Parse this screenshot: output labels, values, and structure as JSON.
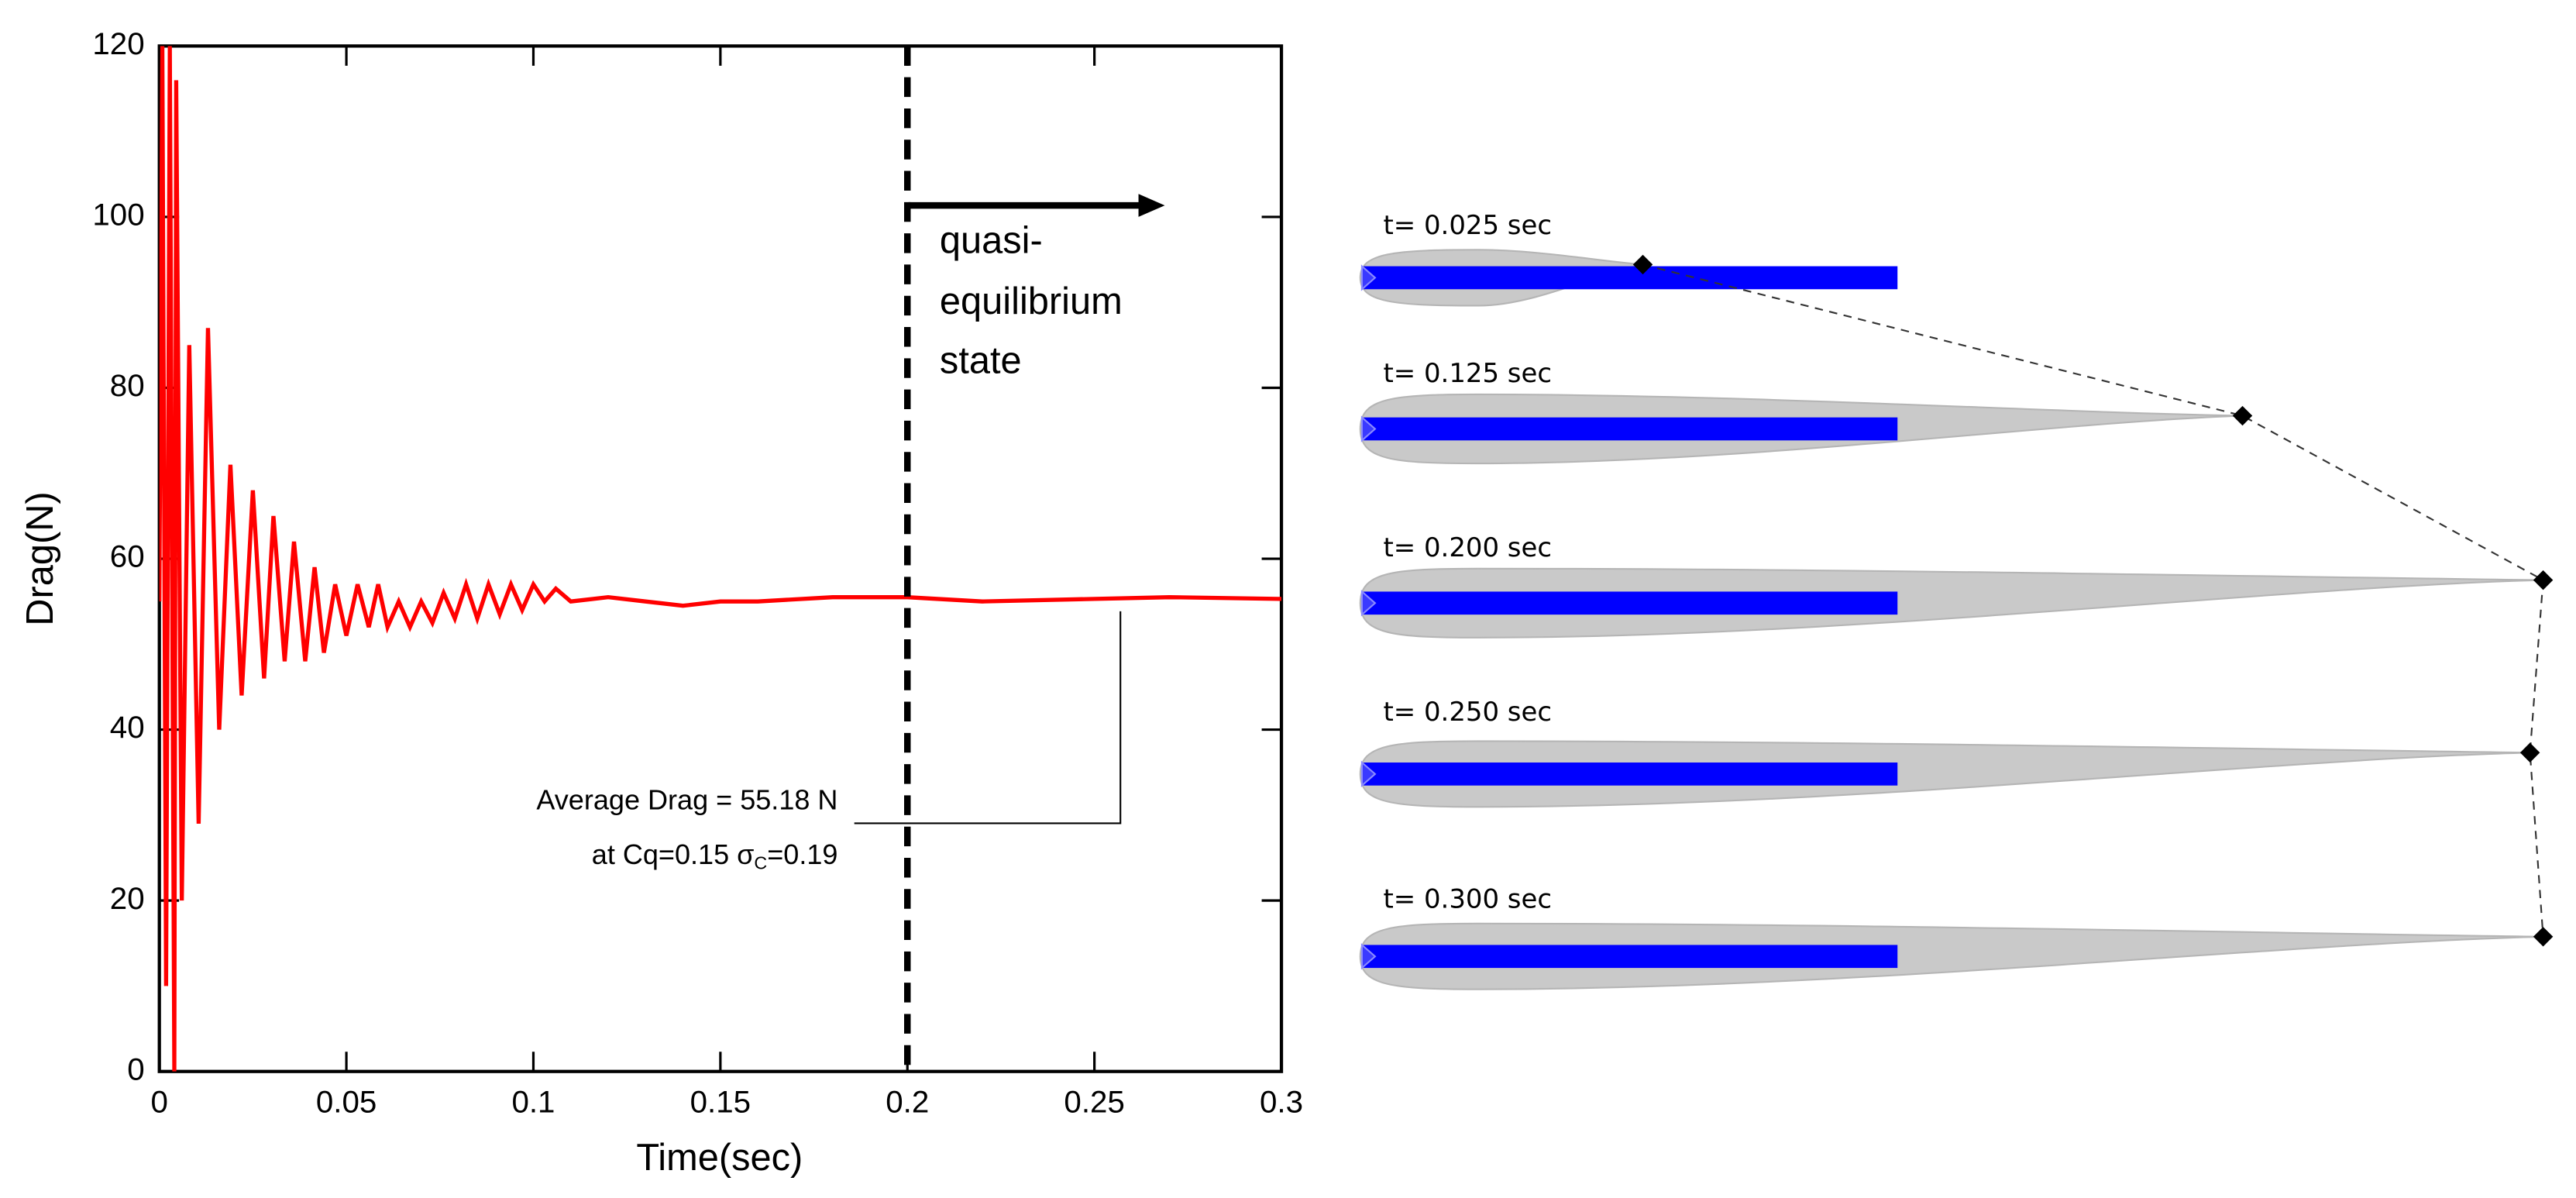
{
  "chart_data": {
    "type": "line",
    "x_label": "Time(sec)",
    "y_label": "Drag(N)",
    "xlim": [
      0,
      0.3
    ],
    "xticks": [
      0,
      0.05,
      0.1,
      0.15,
      0.2,
      0.25,
      0.3
    ],
    "ylim": [
      0,
      120
    ],
    "yticks": [
      0,
      20,
      40,
      60,
      80,
      100,
      120
    ],
    "x": [
      0.0,
      0.0008,
      0.0018,
      0.0028,
      0.004,
      0.0045,
      0.006,
      0.008,
      0.0105,
      0.013,
      0.016,
      0.019,
      0.022,
      0.025,
      0.028,
      0.0305,
      0.0335,
      0.036,
      0.039,
      0.0415,
      0.044,
      0.047,
      0.05,
      0.053,
      0.056,
      0.0585,
      0.061,
      0.064,
      0.067,
      0.07,
      0.073,
      0.076,
      0.079,
      0.082,
      0.085,
      0.088,
      0.091,
      0.094,
      0.097,
      0.1,
      0.103,
      0.106,
      0.11,
      0.12,
      0.13,
      0.14,
      0.15,
      0.16,
      0.18,
      0.2,
      0.22,
      0.25,
      0.27,
      0.3
    ],
    "series": [
      {
        "color": "#ff0000",
        "values": [
          55,
          120,
          10,
          120,
          0,
          116,
          20,
          85,
          29,
          87,
          40,
          71,
          44,
          68,
          46,
          65,
          48,
          62,
          48,
          59,
          49,
          57,
          51,
          57,
          52,
          57,
          52,
          55,
          52,
          55,
          52.5,
          56,
          53,
          57,
          53,
          57,
          53.5,
          57,
          54,
          57,
          55,
          56.5,
          55,
          55.5,
          55,
          54.5,
          55,
          55,
          55.5,
          55.5,
          55,
          55.3,
          55.5,
          55.3
        ]
      }
    ],
    "vline_x": 0.2,
    "annotation": [
      "quasi-",
      "equilibrium",
      "state"
    ],
    "average_drag_label": "Average Drag = 55.18 N",
    "conditions": {
      "prefix": "at  Cq=0.15 σ",
      "subscript": "C",
      "suffix": "=0.19"
    }
  },
  "cavity_snapshots": [
    "t= 0.025 sec",
    "t= 0.125 sec",
    "t= 0.200 sec",
    "t= 0.250 sec",
    "t= 0.300 sec"
  ]
}
